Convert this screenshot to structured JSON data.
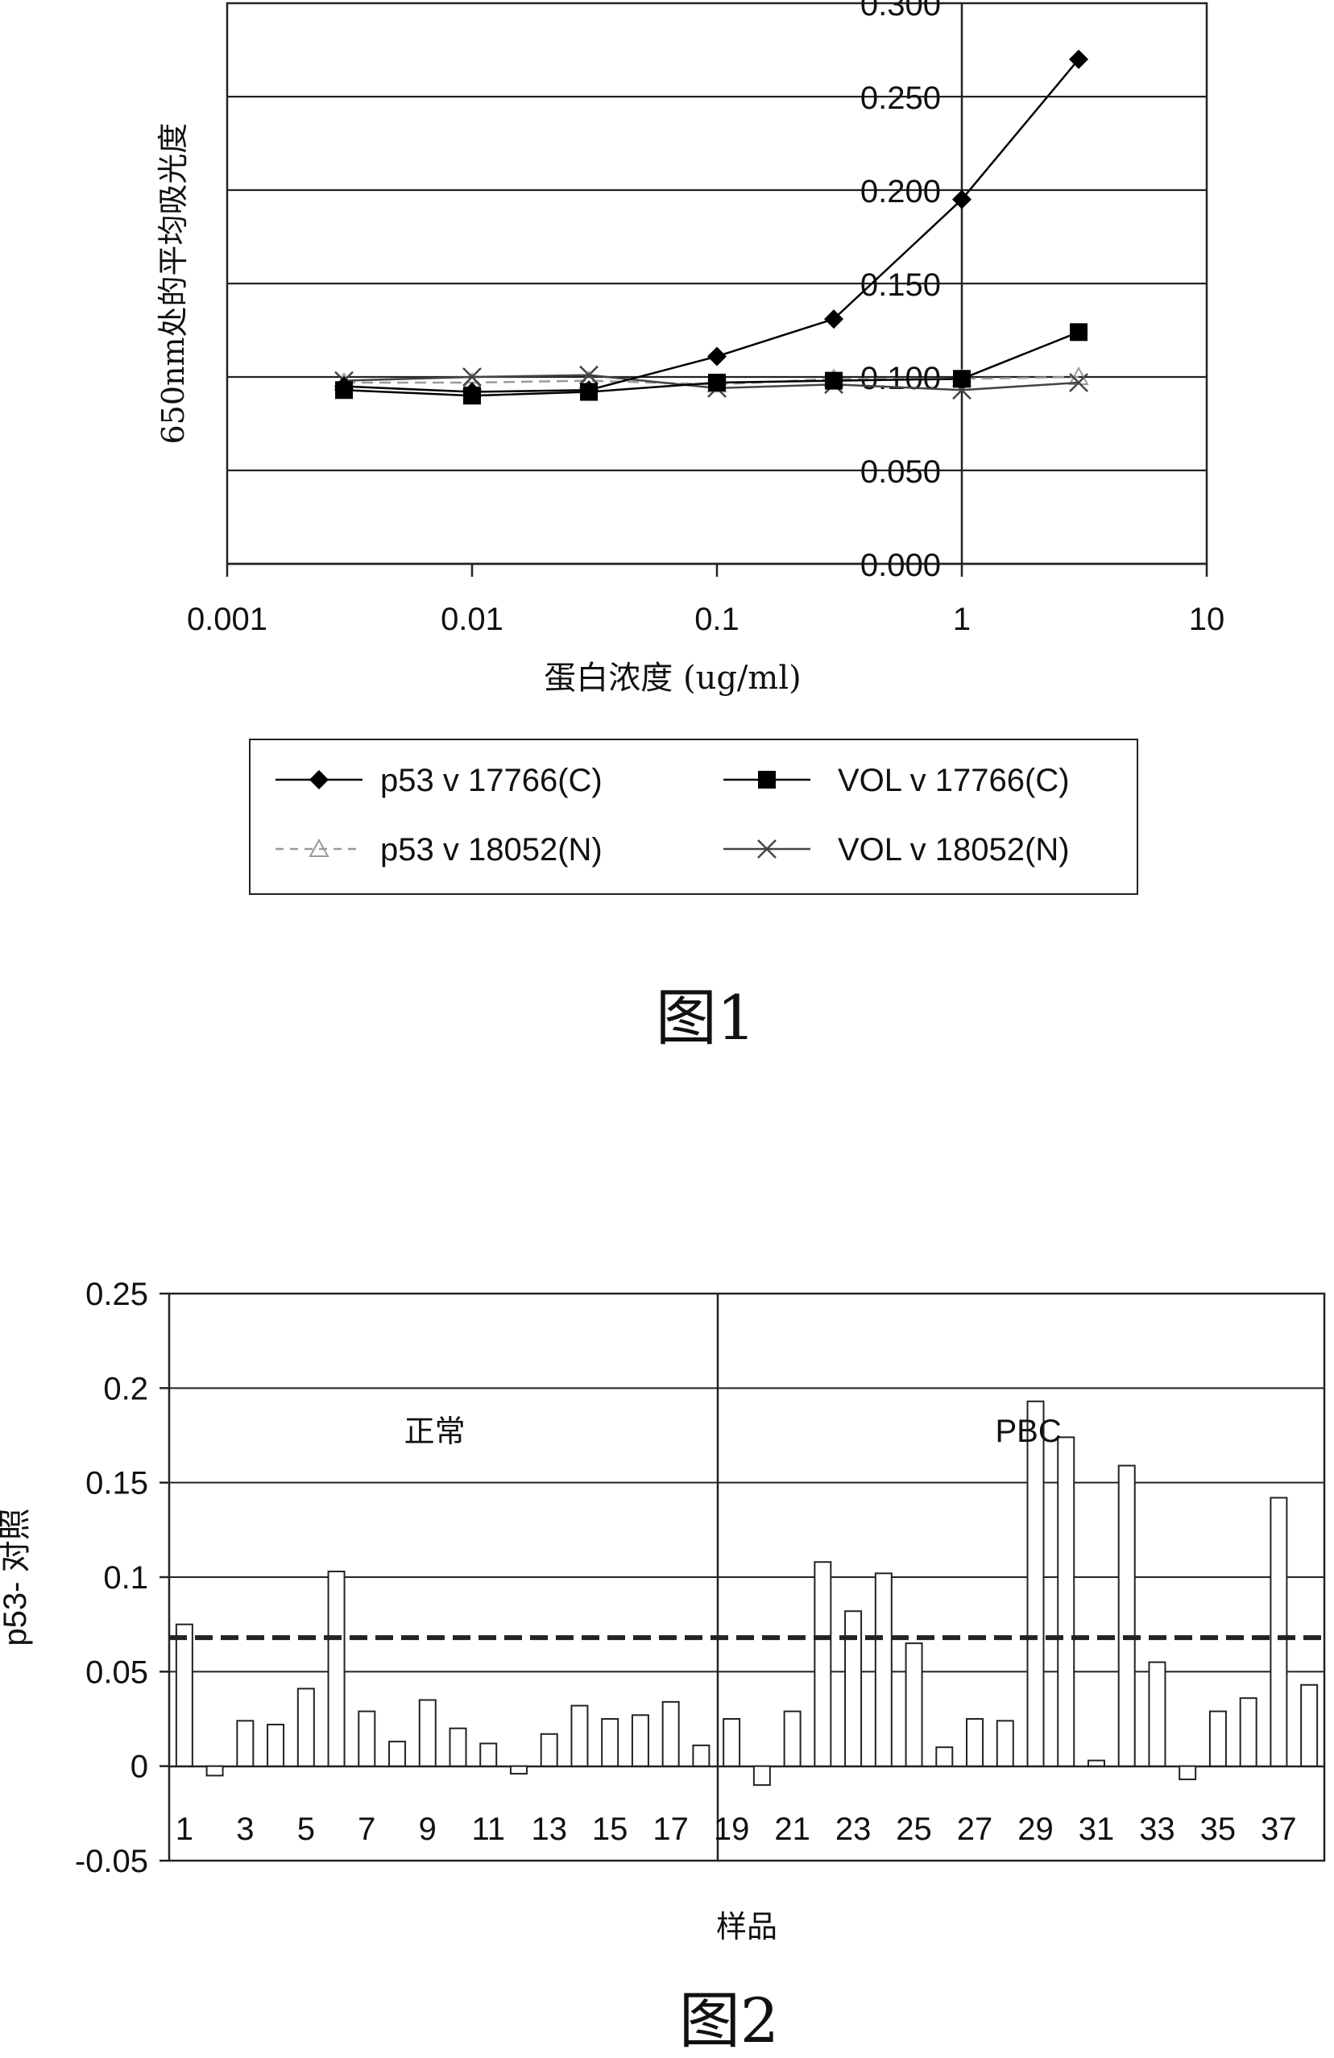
{
  "chart_data": [
    {
      "type": "line",
      "title": "",
      "caption": "图1",
      "xlabel": "蛋白浓度 (ug/ml)",
      "ylabel": "650nm处的平均吸光度",
      "xscale": "log",
      "xlim": [
        0.001,
        10
      ],
      "ylim": [
        0,
        0.3
      ],
      "xticks": [
        "0.001",
        "0.01",
        "0.1",
        "1",
        "10"
      ],
      "yticks": [
        "0.000",
        "0.050",
        "0.100",
        "0.150",
        "0.200",
        "0.250",
        "0.300"
      ],
      "x": [
        0.003,
        0.01,
        0.03,
        0.1,
        0.3,
        1,
        3
      ],
      "series": [
        {
          "name": "p53 v 17766(C)",
          "marker": "diamond",
          "color": "#000000",
          "values": [
            0.095,
            0.092,
            0.093,
            0.111,
            0.131,
            0.195,
            0.27
          ]
        },
        {
          "name": "VOL v 17766(C)",
          "marker": "square",
          "color": "#000000",
          "values": [
            0.093,
            0.09,
            0.092,
            0.097,
            0.098,
            0.099,
            0.124
          ]
        },
        {
          "name": "p53 v 18052(N)",
          "marker": "triangle",
          "color": "#9a9a9a",
          "values": [
            0.097,
            0.097,
            0.098,
            0.096,
            0.099,
            0.099,
            0.1
          ]
        },
        {
          "name": "VOL v 18052(N)",
          "marker": "x",
          "color": "#444444",
          "values": [
            0.098,
            0.1,
            0.101,
            0.094,
            0.096,
            0.093,
            0.097
          ]
        }
      ],
      "legend": "bottom",
      "grid": "horizontal"
    },
    {
      "type": "bar",
      "title": "",
      "caption": "图2",
      "xlabel": "样品",
      "ylabel": "p53- 对照",
      "ylim": [
        -0.05,
        0.25
      ],
      "yticks": [
        "0.25",
        "0.2",
        "0.15",
        "0.1",
        "0.05",
        "0",
        "-0.05"
      ],
      "categories": [
        "1",
        "2",
        "3",
        "4",
        "5",
        "6",
        "7",
        "8",
        "9",
        "10",
        "11",
        "12",
        "13",
        "14",
        "15",
        "16",
        "17",
        "18",
        "19",
        "20",
        "21",
        "22",
        "23",
        "24",
        "25",
        "26",
        "27",
        "28",
        "29",
        "30",
        "31",
        "32",
        "33",
        "34",
        "35",
        "36",
        "37",
        "38"
      ],
      "xtick_labels": [
        "1",
        "3",
        "5",
        "7",
        "9",
        "11",
        "13",
        "15",
        "17",
        "19",
        "21",
        "23",
        "25",
        "27",
        "29",
        "31",
        "33",
        "35",
        "37"
      ],
      "values": [
        0.075,
        -0.005,
        0.024,
        0.022,
        0.041,
        0.103,
        0.029,
        0.013,
        0.035,
        0.02,
        0.012,
        -0.004,
        0.017,
        0.032,
        0.025,
        0.027,
        0.034,
        0.011,
        0.025,
        -0.01,
        0.029,
        0.108,
        0.082,
        0.102,
        0.065,
        0.01,
        0.025,
        0.024,
        0.193,
        0.174,
        0.003,
        0.159,
        0.055,
        -0.007,
        0.029,
        0.036,
        0.142,
        0.043
      ],
      "threshold": 0.068,
      "groups": [
        {
          "label": "正常",
          "from": 1,
          "to": 18
        },
        {
          "label": "PBC",
          "from": 19,
          "to": 38
        }
      ],
      "grid": "horizontal"
    }
  ]
}
